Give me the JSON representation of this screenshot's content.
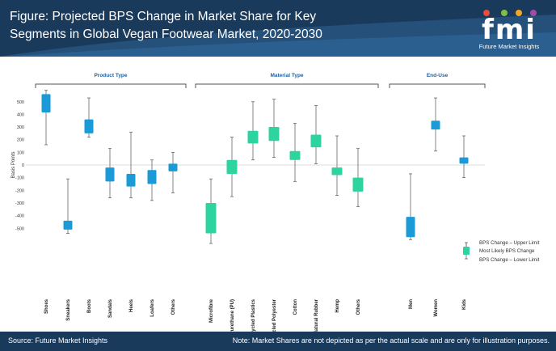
{
  "header": {
    "title": "Figure: Projected BPS Change in Market Share for Key Segments in Global Vegan Footwear Market, 2020-2030"
  },
  "logo": {
    "mark": "fmi",
    "name": "Future Market Insights",
    "dot_colors": [
      "#e94b3c",
      "#7cc242",
      "#f5a623",
      "#a24ca3"
    ]
  },
  "footer": {
    "source": "Source: Future Market Insights",
    "note": "Note: Market Shares are not depicted as per the actual scale and are only for illustration purposes."
  },
  "chart_data": {
    "type": "box",
    "ylabel": "Basis Points",
    "ylim": [
      -650,
      650
    ],
    "yticks": [
      500,
      400,
      300,
      200,
      100,
      0,
      -100,
      -200,
      -300,
      -400,
      -500
    ],
    "groups": [
      {
        "label": "Product Type",
        "color": "#1a9bd7",
        "categories": [
          "Shoes",
          "Sneakers",
          "Boots",
          "Sandals",
          "Heels",
          "Loafers",
          "Others"
        ]
      },
      {
        "label": "Material Type",
        "color": "#2dd4a0",
        "categories": [
          "Microfibre",
          "Polyurethane (PU)",
          "Recycled Plastics",
          "Recycled Polyester",
          "Cotton",
          "Natural Rubber",
          "Hemp",
          "Others"
        ]
      },
      {
        "label": "End-Use",
        "color": "#1a9bd7",
        "categories": [
          "Men",
          "Women",
          "Kids"
        ]
      }
    ],
    "series": [
      {
        "name": "Shoes",
        "low": 160,
        "q1": 415,
        "q3": 560,
        "high": 590
      },
      {
        "name": "Sneakers",
        "low": -540,
        "q1": -510,
        "q3": -440,
        "high": -110
      },
      {
        "name": "Boots",
        "low": 220,
        "q1": 250,
        "q3": 360,
        "high": 530
      },
      {
        "name": "Sandals",
        "low": -260,
        "q1": -130,
        "q3": -20,
        "high": 130
      },
      {
        "name": "Heels",
        "low": -260,
        "q1": -170,
        "q3": -70,
        "high": 260
      },
      {
        "name": "Loafers",
        "low": -280,
        "q1": -150,
        "q3": -40,
        "high": 40
      },
      {
        "name": "Others",
        "low": -220,
        "q1": -50,
        "q3": 10,
        "high": 100
      },
      {
        "name": "Microfibre",
        "low": -620,
        "q1": -540,
        "q3": -300,
        "high": -110
      },
      {
        "name": "Polyurethane (PU)",
        "low": -250,
        "q1": -70,
        "q3": 40,
        "high": 220
      },
      {
        "name": "Recycled Plastics",
        "low": 40,
        "q1": 170,
        "q3": 270,
        "high": 500
      },
      {
        "name": "Recycled Polyester",
        "low": 60,
        "q1": 190,
        "q3": 300,
        "high": 520
      },
      {
        "name": "Cotton",
        "low": -130,
        "q1": 40,
        "q3": 110,
        "high": 330
      },
      {
        "name": "Natural Rubber",
        "low": 10,
        "q1": 140,
        "q3": 240,
        "high": 470
      },
      {
        "name": "Hemp",
        "low": -240,
        "q1": -80,
        "q3": -20,
        "high": 230
      },
      {
        "name": "Others",
        "low": -330,
        "q1": -210,
        "q3": -100,
        "high": 130
      },
      {
        "name": "Men",
        "low": -590,
        "q1": -570,
        "q3": -410,
        "high": -70
      },
      {
        "name": "Women",
        "low": 110,
        "q1": 280,
        "q3": 350,
        "high": 530
      },
      {
        "name": "Kids",
        "low": -100,
        "q1": 10,
        "q3": 60,
        "high": 230
      }
    ],
    "legend": {
      "position": "right",
      "entries": [
        "BPS Change – Upper Limit",
        "Most Likely BPS Change",
        "BPS Change – Lower Limit"
      ]
    }
  }
}
